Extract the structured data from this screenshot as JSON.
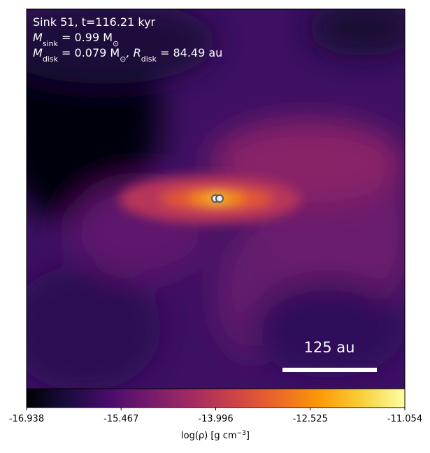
{
  "chart_data": {
    "type": "image",
    "annotations": [
      [
        "Sink 51, t=116.21 kyr"
      ],
      [
        "M",
        "sink",
        " = 0.99 M",
        "⊙"
      ],
      [
        "M",
        "disk",
        " = 0.079 M",
        "⊙",
        ", R",
        "disk",
        " = 84.49 au"
      ]
    ],
    "scale_bar_label": "125 au",
    "colorbar": {
      "clim": [
        -16.938,
        -11.054
      ],
      "ticks": [
        -16.938,
        -15.467,
        -13.996,
        -12.525,
        -11.054
      ],
      "label": [
        "log(ρ) [g cm",
        "−3",
        "]"
      ],
      "colormap": [
        "#000004",
        "#1b0c41",
        "#4a0c6b",
        "#781c6d",
        "#a52c60",
        "#cf4446",
        "#ed6925",
        "#fb9b06",
        "#f7d13d",
        "#fcffa4"
      ]
    }
  }
}
